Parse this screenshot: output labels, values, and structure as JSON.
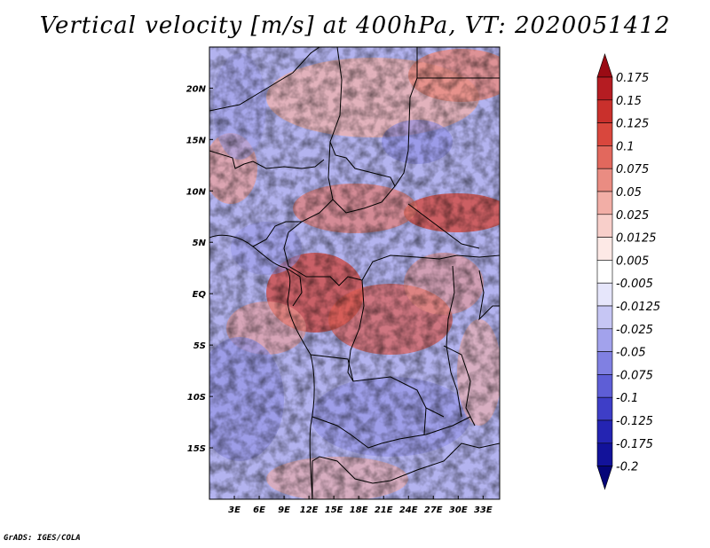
{
  "title": "Vertical velocity [m/s] at 400hPa, VT: 2020051412",
  "credit": "GrADS: IGES/COLA",
  "map": {
    "lat_labels": [
      "20N",
      "15N",
      "10N",
      "5N",
      "EQ",
      "5S",
      "10S",
      "15S"
    ],
    "lon_labels": [
      "3E",
      "6E",
      "9E",
      "12E",
      "15E",
      "18E",
      "21E",
      "24E",
      "27E",
      "30E",
      "33E"
    ],
    "lat_range": [
      -20,
      24
    ],
    "lon_range": [
      0,
      35
    ]
  },
  "colorbar": {
    "labels": [
      "0.175",
      "0.15",
      "0.125",
      "0.1",
      "0.075",
      "0.05",
      "0.025",
      "0.0125",
      "0.005",
      "-0.005",
      "-0.0125",
      "-0.025",
      "-0.05",
      "-0.075",
      "-0.1",
      "-0.125",
      "-0.175",
      "-0.2"
    ],
    "colors": [
      "#9a0b14",
      "#b51c22",
      "#c9302c",
      "#d9473d",
      "#e2685d",
      "#ea8c82",
      "#f2aea6",
      "#f8cfca",
      "#fde9e6",
      "#ffffff",
      "#e6e6fb",
      "#c6c6f4",
      "#a2a2ec",
      "#8080e2",
      "#5e5ed6",
      "#3e3ec7",
      "#2424b2",
      "#12129a",
      "#050578"
    ]
  }
}
